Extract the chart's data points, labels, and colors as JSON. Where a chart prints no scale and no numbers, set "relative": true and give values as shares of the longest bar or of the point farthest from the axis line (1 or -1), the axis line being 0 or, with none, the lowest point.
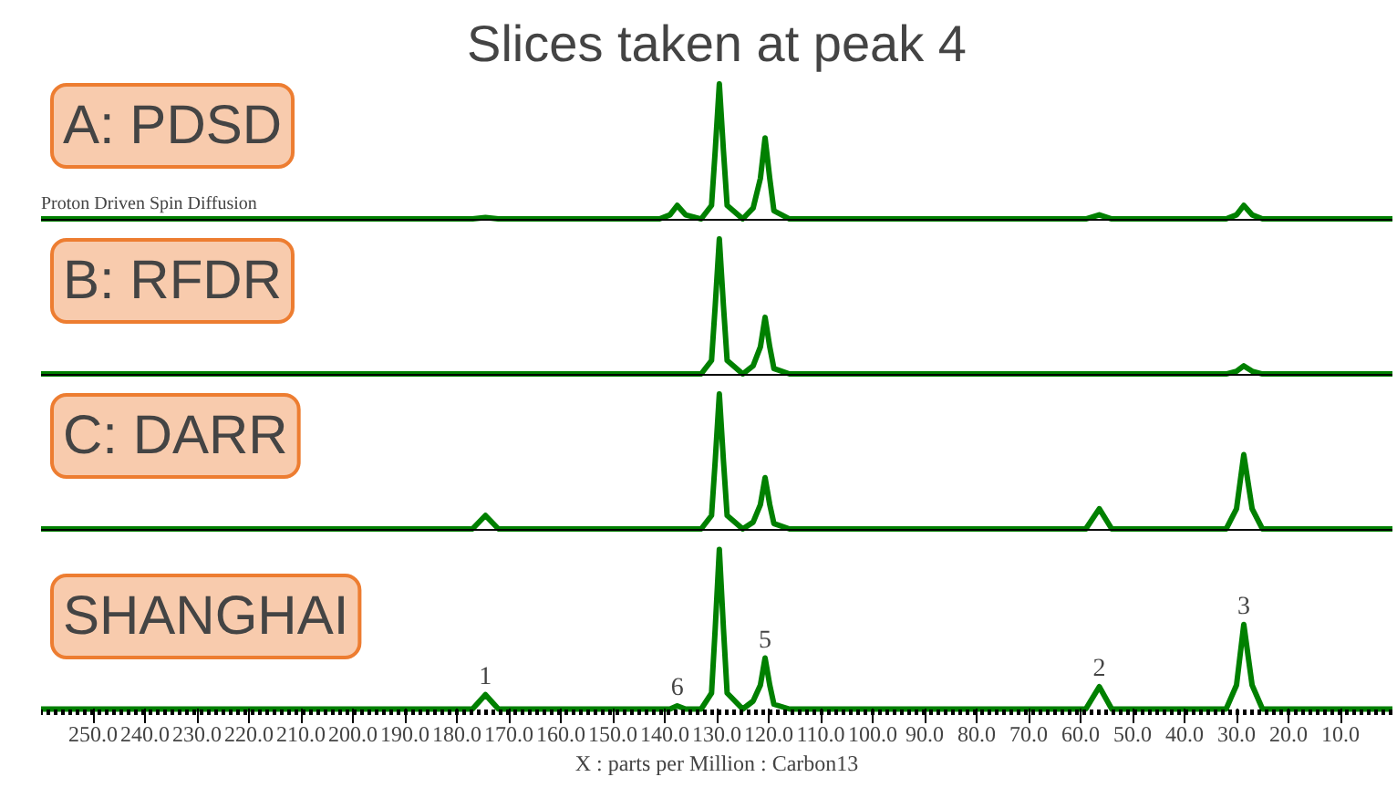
{
  "chart_data": [
    {
      "type": "line",
      "title": "A: PDSD",
      "subtitle": "Proton Driven Spin Diffusion",
      "annotations": [
        "Slices taken at peak 4"
      ],
      "relative": true,
      "xlim": [
        260,
        0
      ],
      "tick_labels": false,
      "grid": false,
      "x": [
        260,
        177,
        174.5,
        172,
        141,
        139,
        137.6,
        136,
        133,
        131,
        130.3,
        129.5,
        128.7,
        128,
        125,
        123,
        121.6,
        120.7,
        119.8,
        119,
        116,
        59,
        56.4,
        54,
        32,
        30,
        28.6,
        27,
        25,
        0
      ],
      "series": [
        {
          "color": "#008000",
          "values": [
            0,
            0,
            0.01,
            0,
            0,
            0.03,
            0.1,
            0.03,
            0,
            0.1,
            0.5,
            1,
            0.5,
            0.1,
            0,
            0.08,
            0.3,
            0.6,
            0.3,
            0.06,
            0,
            0,
            0.03,
            0,
            0,
            0.03,
            0.1,
            0.03,
            0,
            0
          ]
        }
      ]
    },
    {
      "type": "line",
      "title": "B: RFDR",
      "relative": true,
      "xlim": [
        260,
        0
      ],
      "tick_labels": false,
      "grid": false,
      "x": [
        260,
        177,
        174.5,
        172,
        141,
        139,
        137.6,
        136,
        133,
        131,
        130.3,
        129.5,
        128.7,
        128,
        125,
        123,
        121.6,
        120.7,
        119.8,
        119,
        116,
        59,
        56.4,
        54,
        32,
        30,
        28.6,
        27,
        25,
        0
      ],
      "series": [
        {
          "color": "#008000",
          "values": [
            0,
            0,
            0,
            0,
            0,
            0,
            0,
            0,
            0,
            0.1,
            0.5,
            1,
            0.5,
            0.1,
            0,
            0.06,
            0.2,
            0.42,
            0.2,
            0.04,
            0,
            0,
            0,
            0,
            0,
            0.02,
            0.06,
            0.02,
            0,
            0
          ]
        }
      ]
    },
    {
      "type": "line",
      "title": "C: DARR",
      "relative": true,
      "xlim": [
        260,
        0
      ],
      "tick_labels": false,
      "grid": false,
      "x": [
        260,
        177,
        174.5,
        172,
        141,
        139,
        137.6,
        136,
        133,
        131,
        130.3,
        129.5,
        128.7,
        128,
        125,
        123,
        121.6,
        120.7,
        119.8,
        119,
        116,
        59,
        56.4,
        54,
        32,
        30,
        28.6,
        27,
        25,
        0
      ],
      "series": [
        {
          "color": "#008000",
          "values": [
            0,
            0,
            0.1,
            0,
            0,
            0,
            0,
            0,
            0,
            0.1,
            0.5,
            1,
            0.5,
            0.1,
            0,
            0.05,
            0.18,
            0.38,
            0.18,
            0.04,
            0,
            0,
            0.15,
            0,
            0,
            0.15,
            0.55,
            0.15,
            0,
            0
          ]
        }
      ]
    },
    {
      "type": "line",
      "title": "SHANGHAI",
      "xlabel": "X : parts per Million : Carbon13",
      "relative": true,
      "xlim": [
        260,
        0
      ],
      "tick_labels": "x",
      "grid": false,
      "xticks": [
        {
          "value": 250,
          "label": "250.0"
        },
        {
          "value": 240,
          "label": "240.0"
        },
        {
          "value": 230,
          "label": "230.0"
        },
        {
          "value": 220,
          "label": "220.0"
        },
        {
          "value": 210,
          "label": "210.0"
        },
        {
          "value": 200,
          "label": "200.0"
        },
        {
          "value": 190,
          "label": "190.0"
        },
        {
          "value": 180,
          "label": "180.0"
        },
        {
          "value": 170,
          "label": "170.0"
        },
        {
          "value": 160,
          "label": "160.0"
        },
        {
          "value": 150,
          "label": "150.0"
        },
        {
          "value": 140,
          "label": "140.0"
        },
        {
          "value": 130,
          "label": "130.0"
        },
        {
          "value": 120,
          "label": "120.0"
        },
        {
          "value": 110,
          "label": "110.0"
        },
        {
          "value": 100,
          "label": "100.0"
        },
        {
          "value": 90,
          "label": "90.0"
        },
        {
          "value": 80,
          "label": "80.0"
        },
        {
          "value": 70,
          "label": "70.0"
        },
        {
          "value": 60,
          "label": "60.0"
        },
        {
          "value": 50,
          "label": "50.0"
        },
        {
          "value": 40,
          "label": "40.0"
        },
        {
          "value": 30,
          "label": "30.0"
        },
        {
          "value": 20,
          "label": "20.0"
        },
        {
          "value": 10,
          "label": "10.0"
        }
      ],
      "annotations": [
        {
          "text": "1",
          "x": 174.5,
          "y": 0.09
        },
        {
          "text": "6",
          "x": 137.6,
          "y": 0.02
        },
        {
          "text": "5",
          "x": 120.7,
          "y": 0.32
        },
        {
          "text": "2",
          "x": 56.4,
          "y": 0.14
        },
        {
          "text": "3",
          "x": 28.6,
          "y": 0.53
        }
      ],
      "x": [
        260,
        177,
        174.5,
        172,
        141,
        139,
        137.6,
        136,
        133,
        131,
        130.3,
        129.5,
        128.7,
        128,
        125,
        123,
        121.6,
        120.7,
        119.8,
        119,
        116,
        59,
        56.4,
        54,
        32,
        30,
        28.6,
        27,
        25,
        0
      ],
      "series": [
        {
          "color": "#008000",
          "values": [
            0,
            0,
            0.09,
            0,
            0,
            0,
            0.02,
            0,
            0,
            0.1,
            0.5,
            1,
            0.5,
            0.1,
            0,
            0.05,
            0.15,
            0.32,
            0.15,
            0.03,
            0,
            0,
            0.14,
            0,
            0,
            0.15,
            0.53,
            0.15,
            0,
            0
          ]
        }
      ]
    }
  ]
}
